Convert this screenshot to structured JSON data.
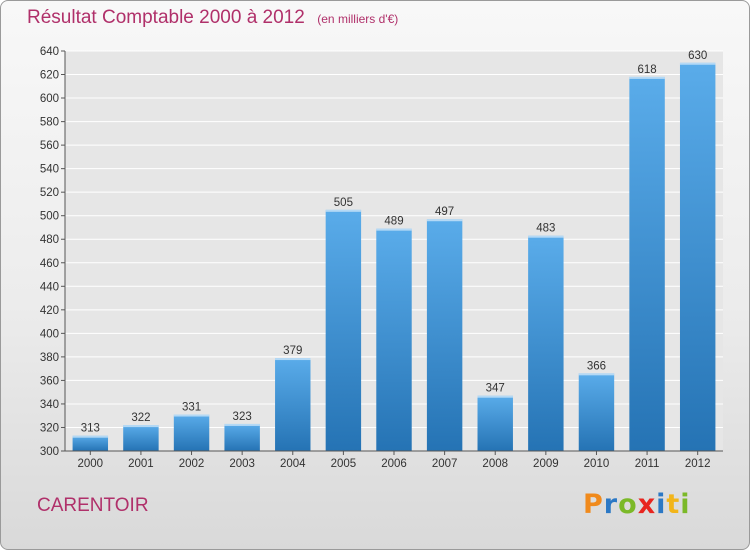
{
  "title": {
    "main": "Résultat Comptable 2000 à 2012",
    "sub": "(en milliers d'€)"
  },
  "location": "CARENTOIR",
  "brand": {
    "name": "Proxiti",
    "letters": [
      {
        "char": "P",
        "color": "#f08a1c"
      },
      {
        "char": "r",
        "color": "#2b78c5"
      },
      {
        "char": "o",
        "color": "#7bb928"
      },
      {
        "char": "x",
        "color": "#e8251f"
      },
      {
        "char": "i",
        "color": "#2b78c5"
      },
      {
        "char": "t",
        "color": "#f2b51a"
      },
      {
        "char": "i",
        "color": "#7bb928"
      }
    ]
  },
  "colors": {
    "title": "#b0306a",
    "bar_light": "#5aacea",
    "bar_dark": "#2573b4",
    "grid": "#ffffff"
  },
  "chart_data": {
    "type": "bar",
    "title": "Résultat Comptable 2000 à 2012",
    "subtitle": "(en milliers d'€)",
    "xlabel": "",
    "ylabel": "",
    "categories": [
      "2000",
      "2001",
      "2002",
      "2003",
      "2004",
      "2005",
      "2006",
      "2007",
      "2008",
      "2009",
      "2010",
      "2011",
      "2012"
    ],
    "values": [
      313,
      322,
      331,
      323,
      379,
      505,
      489,
      497,
      347,
      483,
      366,
      618,
      630
    ],
    "ylim": [
      300,
      640
    ],
    "ytick_step": 20,
    "grid": true,
    "data_labels": true
  }
}
